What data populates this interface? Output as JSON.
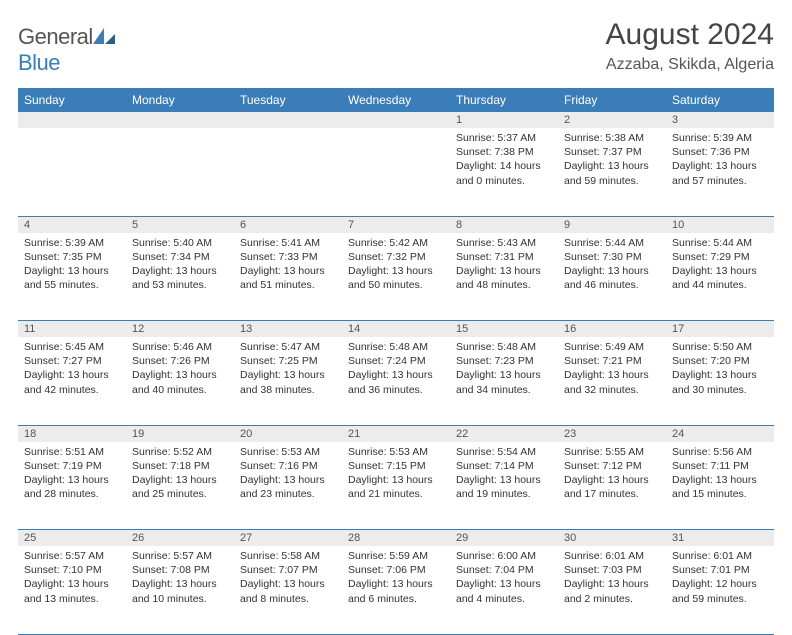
{
  "brand": {
    "part1": "General",
    "part2": "Blue"
  },
  "title": "August 2024",
  "location": "Azzaba, Skikda, Algeria",
  "colors": {
    "header_bg": "#3a7db8",
    "daynum_bg": "#ececec",
    "text": "#333333"
  },
  "day_headers": [
    "Sunday",
    "Monday",
    "Tuesday",
    "Wednesday",
    "Thursday",
    "Friday",
    "Saturday"
  ],
  "weeks": [
    [
      null,
      null,
      null,
      null,
      {
        "n": "1",
        "sr": "Sunrise: 5:37 AM",
        "ss": "Sunset: 7:38 PM",
        "dl": "Daylight: 14 hours and 0 minutes."
      },
      {
        "n": "2",
        "sr": "Sunrise: 5:38 AM",
        "ss": "Sunset: 7:37 PM",
        "dl": "Daylight: 13 hours and 59 minutes."
      },
      {
        "n": "3",
        "sr": "Sunrise: 5:39 AM",
        "ss": "Sunset: 7:36 PM",
        "dl": "Daylight: 13 hours and 57 minutes."
      }
    ],
    [
      {
        "n": "4",
        "sr": "Sunrise: 5:39 AM",
        "ss": "Sunset: 7:35 PM",
        "dl": "Daylight: 13 hours and 55 minutes."
      },
      {
        "n": "5",
        "sr": "Sunrise: 5:40 AM",
        "ss": "Sunset: 7:34 PM",
        "dl": "Daylight: 13 hours and 53 minutes."
      },
      {
        "n": "6",
        "sr": "Sunrise: 5:41 AM",
        "ss": "Sunset: 7:33 PM",
        "dl": "Daylight: 13 hours and 51 minutes."
      },
      {
        "n": "7",
        "sr": "Sunrise: 5:42 AM",
        "ss": "Sunset: 7:32 PM",
        "dl": "Daylight: 13 hours and 50 minutes."
      },
      {
        "n": "8",
        "sr": "Sunrise: 5:43 AM",
        "ss": "Sunset: 7:31 PM",
        "dl": "Daylight: 13 hours and 48 minutes."
      },
      {
        "n": "9",
        "sr": "Sunrise: 5:44 AM",
        "ss": "Sunset: 7:30 PM",
        "dl": "Daylight: 13 hours and 46 minutes."
      },
      {
        "n": "10",
        "sr": "Sunrise: 5:44 AM",
        "ss": "Sunset: 7:29 PM",
        "dl": "Daylight: 13 hours and 44 minutes."
      }
    ],
    [
      {
        "n": "11",
        "sr": "Sunrise: 5:45 AM",
        "ss": "Sunset: 7:27 PM",
        "dl": "Daylight: 13 hours and 42 minutes."
      },
      {
        "n": "12",
        "sr": "Sunrise: 5:46 AM",
        "ss": "Sunset: 7:26 PM",
        "dl": "Daylight: 13 hours and 40 minutes."
      },
      {
        "n": "13",
        "sr": "Sunrise: 5:47 AM",
        "ss": "Sunset: 7:25 PM",
        "dl": "Daylight: 13 hours and 38 minutes."
      },
      {
        "n": "14",
        "sr": "Sunrise: 5:48 AM",
        "ss": "Sunset: 7:24 PM",
        "dl": "Daylight: 13 hours and 36 minutes."
      },
      {
        "n": "15",
        "sr": "Sunrise: 5:48 AM",
        "ss": "Sunset: 7:23 PM",
        "dl": "Daylight: 13 hours and 34 minutes."
      },
      {
        "n": "16",
        "sr": "Sunrise: 5:49 AM",
        "ss": "Sunset: 7:21 PM",
        "dl": "Daylight: 13 hours and 32 minutes."
      },
      {
        "n": "17",
        "sr": "Sunrise: 5:50 AM",
        "ss": "Sunset: 7:20 PM",
        "dl": "Daylight: 13 hours and 30 minutes."
      }
    ],
    [
      {
        "n": "18",
        "sr": "Sunrise: 5:51 AM",
        "ss": "Sunset: 7:19 PM",
        "dl": "Daylight: 13 hours and 28 minutes."
      },
      {
        "n": "19",
        "sr": "Sunrise: 5:52 AM",
        "ss": "Sunset: 7:18 PM",
        "dl": "Daylight: 13 hours and 25 minutes."
      },
      {
        "n": "20",
        "sr": "Sunrise: 5:53 AM",
        "ss": "Sunset: 7:16 PM",
        "dl": "Daylight: 13 hours and 23 minutes."
      },
      {
        "n": "21",
        "sr": "Sunrise: 5:53 AM",
        "ss": "Sunset: 7:15 PM",
        "dl": "Daylight: 13 hours and 21 minutes."
      },
      {
        "n": "22",
        "sr": "Sunrise: 5:54 AM",
        "ss": "Sunset: 7:14 PM",
        "dl": "Daylight: 13 hours and 19 minutes."
      },
      {
        "n": "23",
        "sr": "Sunrise: 5:55 AM",
        "ss": "Sunset: 7:12 PM",
        "dl": "Daylight: 13 hours and 17 minutes."
      },
      {
        "n": "24",
        "sr": "Sunrise: 5:56 AM",
        "ss": "Sunset: 7:11 PM",
        "dl": "Daylight: 13 hours and 15 minutes."
      }
    ],
    [
      {
        "n": "25",
        "sr": "Sunrise: 5:57 AM",
        "ss": "Sunset: 7:10 PM",
        "dl": "Daylight: 13 hours and 13 minutes."
      },
      {
        "n": "26",
        "sr": "Sunrise: 5:57 AM",
        "ss": "Sunset: 7:08 PM",
        "dl": "Daylight: 13 hours and 10 minutes."
      },
      {
        "n": "27",
        "sr": "Sunrise: 5:58 AM",
        "ss": "Sunset: 7:07 PM",
        "dl": "Daylight: 13 hours and 8 minutes."
      },
      {
        "n": "28",
        "sr": "Sunrise: 5:59 AM",
        "ss": "Sunset: 7:06 PM",
        "dl": "Daylight: 13 hours and 6 minutes."
      },
      {
        "n": "29",
        "sr": "Sunrise: 6:00 AM",
        "ss": "Sunset: 7:04 PM",
        "dl": "Daylight: 13 hours and 4 minutes."
      },
      {
        "n": "30",
        "sr": "Sunrise: 6:01 AM",
        "ss": "Sunset: 7:03 PM",
        "dl": "Daylight: 13 hours and 2 minutes."
      },
      {
        "n": "31",
        "sr": "Sunrise: 6:01 AM",
        "ss": "Sunset: 7:01 PM",
        "dl": "Daylight: 12 hours and 59 minutes."
      }
    ]
  ]
}
